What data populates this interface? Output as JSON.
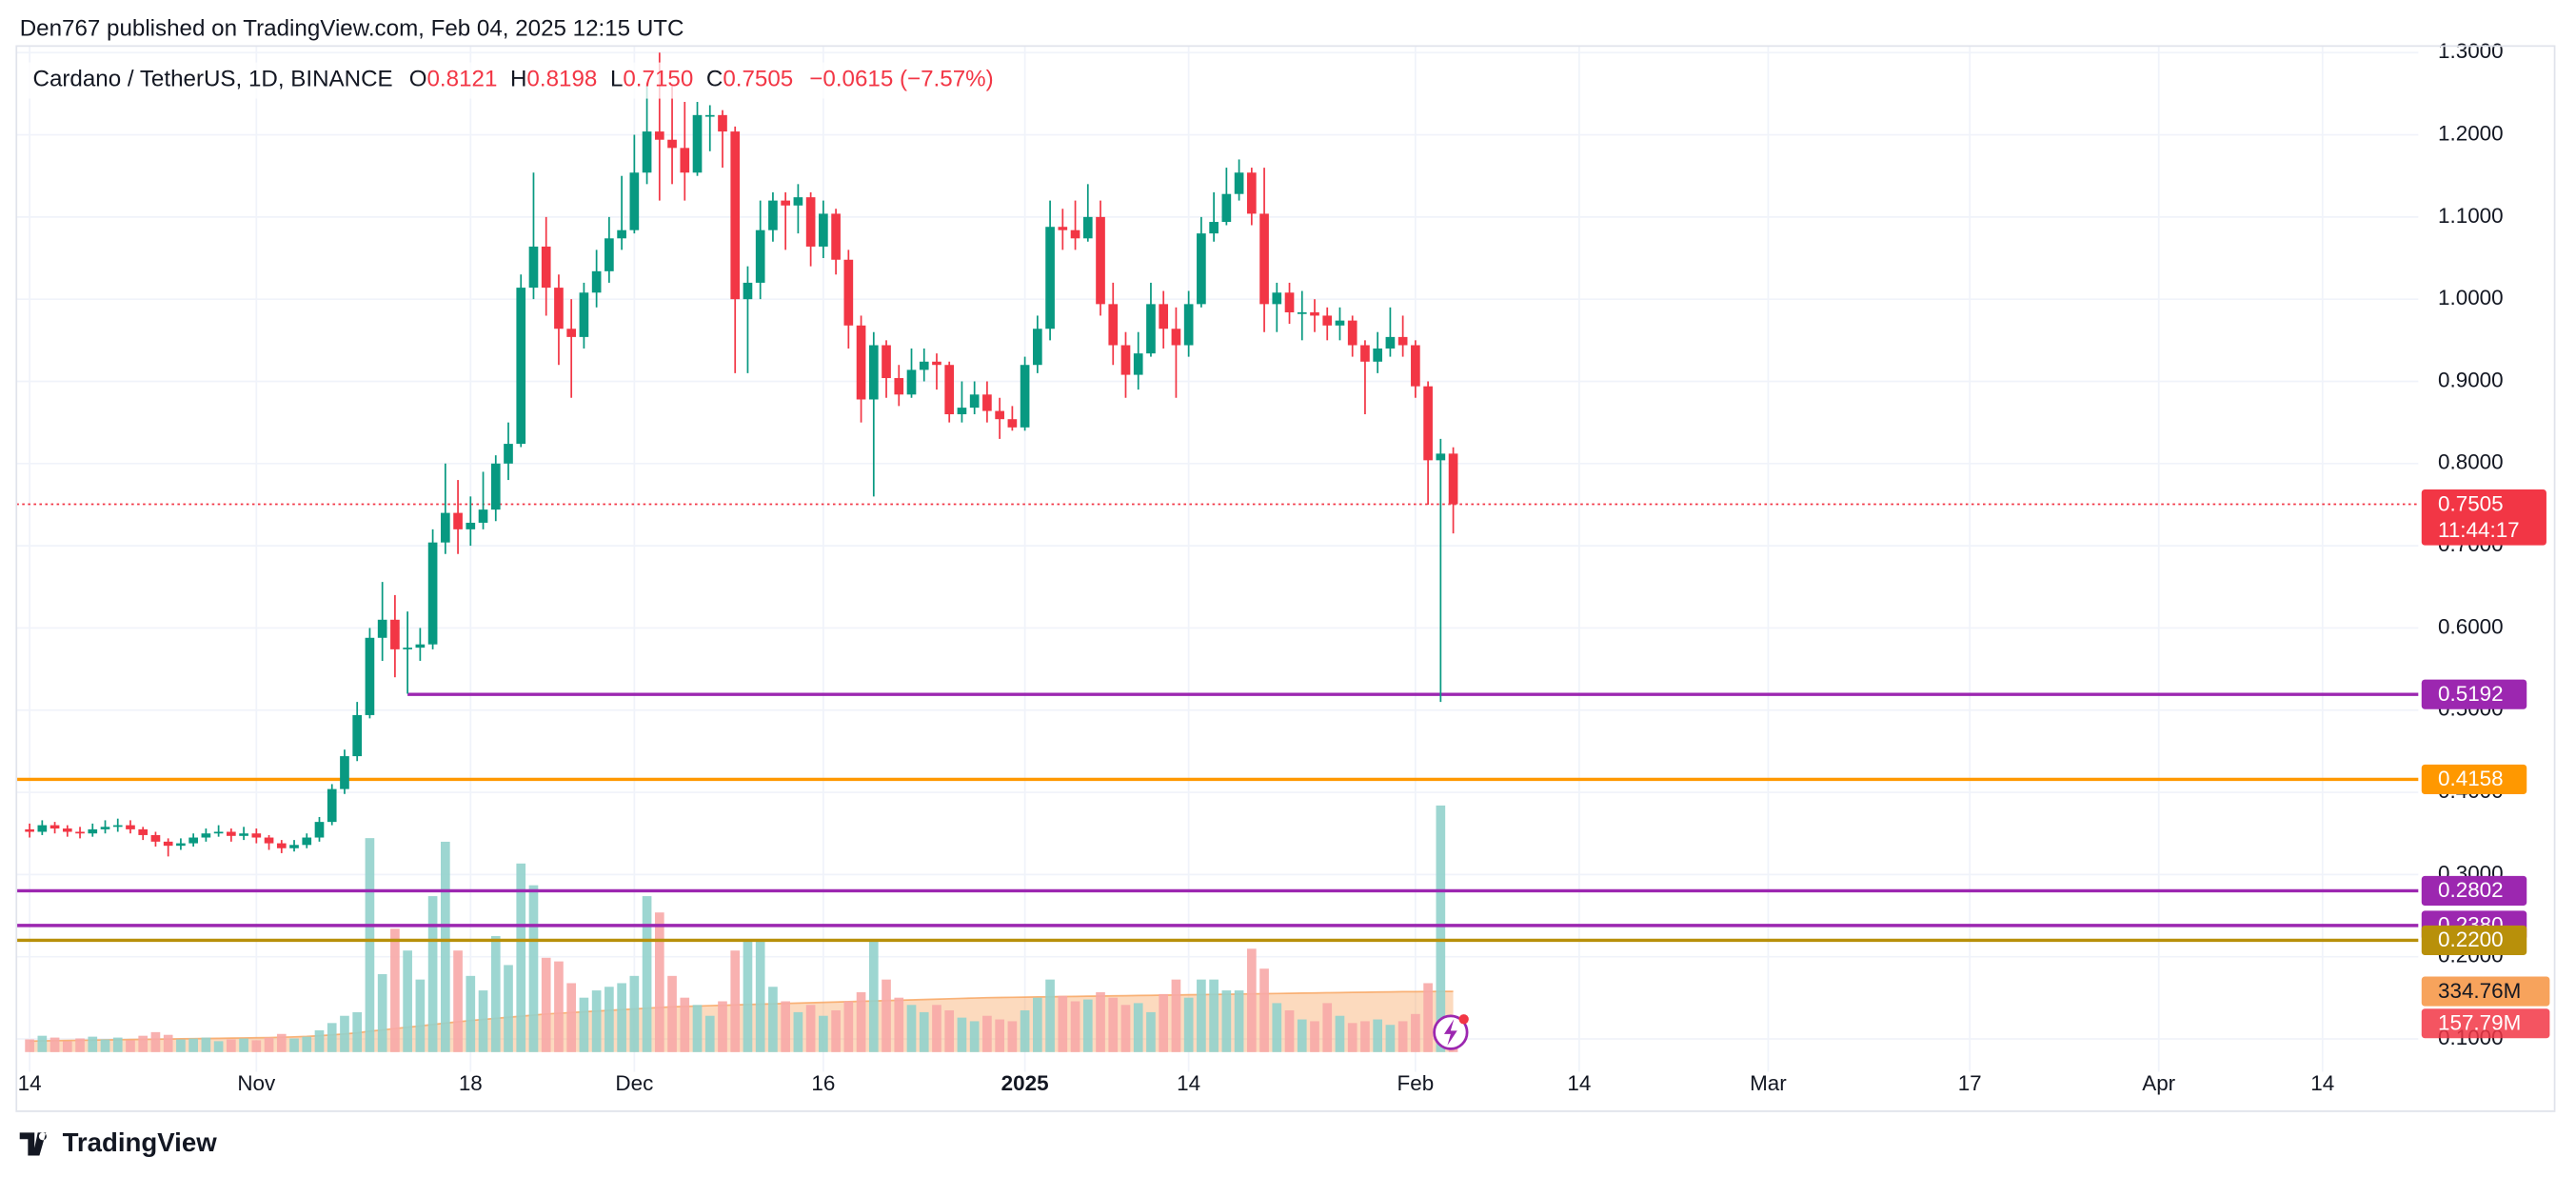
{
  "header": "Den767 published on TradingView.com, Feb 04, 2025 12:15 UTC",
  "footer": "TradingView",
  "chart_data": {
    "type": "candlestick",
    "legend": {
      "symbol": "Cardano / TetherUS, 1D, BINANCE",
      "items": [
        {
          "key": "O",
          "value": "0.8121"
        },
        {
          "key": "H",
          "value": "0.8198"
        },
        {
          "key": "L",
          "value": "0.7150"
        },
        {
          "key": "C",
          "value": "0.7505"
        }
      ],
      "change": "−0.0615 (−7.57%)"
    },
    "up_color": "#089981",
    "down_color": "#f23645",
    "volume_up_color": "#92d2cc",
    "volume_down_color": "#f7a9a7",
    "volume_ma_color": "#f7a35c",
    "open": [
      0.355,
      0.352,
      0.36,
      0.356,
      0.352,
      0.35,
      0.355,
      0.358,
      0.36,
      0.355,
      0.348,
      0.34,
      0.335,
      0.338,
      0.345,
      0.35,
      0.352,
      0.347,
      0.35,
      0.345,
      0.338,
      0.332,
      0.336,
      0.345,
      0.364,
      0.404,
      0.444,
      0.494,
      0.588,
      0.61,
      0.574,
      0.576,
      0.58,
      0.704,
      0.74,
      0.72,
      0.728,
      0.744,
      0.8,
      0.824,
      1.014,
      1.064,
      1.014,
      0.964,
      0.954,
      1.008,
      1.034,
      1.074,
      1.084,
      1.154,
      1.204,
      1.194,
      1.184,
      1.154,
      1.224,
      1.224,
      1.204,
      1.0,
      1.02,
      1.084,
      1.12,
      1.114,
      1.124,
      1.064,
      1.104,
      1.048,
      0.968,
      0.878,
      0.944,
      0.904,
      0.884,
      0.914,
      0.924,
      0.92,
      0.86,
      0.868,
      0.884,
      0.864,
      0.854,
      0.844,
      0.92,
      0.964,
      1.088,
      1.084,
      1.074,
      1.1,
      0.994,
      0.944,
      0.908,
      0.934,
      0.994,
      0.964,
      0.944,
      0.994,
      1.08,
      1.094,
      1.128,
      1.154,
      1.104,
      0.994,
      1.008,
      0.984,
      0.984,
      0.98,
      0.968,
      0.974,
      0.944,
      0.924,
      0.94,
      0.954,
      0.944,
      0.894,
      0.804,
      0.8121
    ],
    "high": [
      0.362,
      0.366,
      0.364,
      0.36,
      0.358,
      0.362,
      0.366,
      0.368,
      0.366,
      0.358,
      0.352,
      0.344,
      0.344,
      0.35,
      0.356,
      0.36,
      0.356,
      0.358,
      0.356,
      0.348,
      0.342,
      0.342,
      0.35,
      0.37,
      0.41,
      0.452,
      0.51,
      0.6,
      0.656,
      0.64,
      0.62,
      0.6,
      0.72,
      0.8,
      0.78,
      0.76,
      0.79,
      0.81,
      0.85,
      1.03,
      1.154,
      1.1,
      1.03,
      1.0,
      1.02,
      1.06,
      1.1,
      1.15,
      1.2,
      1.26,
      1.3,
      1.26,
      1.24,
      1.24,
      1.236,
      1.23,
      1.21,
      1.04,
      1.12,
      1.13,
      1.13,
      1.14,
      1.13,
      1.12,
      1.11,
      1.06,
      0.98,
      0.96,
      0.95,
      0.92,
      0.94,
      0.94,
      0.934,
      0.924,
      0.9,
      0.9,
      0.9,
      0.88,
      0.87,
      0.93,
      0.98,
      1.12,
      1.11,
      1.12,
      1.14,
      1.12,
      1.02,
      0.96,
      0.96,
      1.02,
      1.01,
      0.99,
      1.01,
      1.1,
      1.13,
      1.16,
      1.17,
      1.16,
      1.16,
      1.02,
      1.02,
      1.01,
      1.0,
      0.99,
      0.99,
      0.98,
      0.95,
      0.96,
      0.99,
      0.98,
      0.95,
      0.9,
      0.83,
      0.8198
    ],
    "low": [
      0.345,
      0.348,
      0.35,
      0.346,
      0.344,
      0.346,
      0.35,
      0.352,
      0.35,
      0.342,
      0.334,
      0.322,
      0.33,
      0.334,
      0.34,
      0.346,
      0.34,
      0.342,
      0.338,
      0.33,
      0.326,
      0.328,
      0.332,
      0.34,
      0.36,
      0.398,
      0.438,
      0.49,
      0.56,
      0.54,
      0.52,
      0.56,
      0.574,
      0.69,
      0.69,
      0.7,
      0.72,
      0.73,
      0.78,
      0.82,
      1.0,
      0.98,
      0.92,
      0.88,
      0.94,
      0.99,
      1.02,
      1.06,
      1.08,
      1.14,
      1.12,
      1.14,
      1.12,
      1.15,
      1.18,
      1.16,
      0.91,
      0.91,
      1.0,
      1.07,
      1.06,
      1.08,
      1.04,
      1.05,
      1.03,
      0.94,
      0.85,
      0.76,
      0.88,
      0.87,
      0.88,
      0.9,
      0.89,
      0.85,
      0.85,
      0.86,
      0.85,
      0.83,
      0.84,
      0.84,
      0.91,
      0.95,
      1.06,
      1.06,
      1.07,
      0.98,
      0.92,
      0.88,
      0.89,
      0.93,
      0.94,
      0.88,
      0.93,
      0.99,
      1.07,
      1.09,
      1.12,
      1.09,
      0.96,
      0.96,
      0.97,
      0.95,
      0.96,
      0.95,
      0.95,
      0.93,
      0.86,
      0.91,
      0.93,
      0.93,
      0.88,
      0.75,
      0.51,
      0.715
    ],
    "close": [
      0.352,
      0.36,
      0.356,
      0.352,
      0.35,
      0.355,
      0.358,
      0.36,
      0.355,
      0.348,
      0.34,
      0.335,
      0.338,
      0.345,
      0.35,
      0.352,
      0.347,
      0.35,
      0.345,
      0.338,
      0.332,
      0.336,
      0.345,
      0.364,
      0.404,
      0.444,
      0.494,
      0.588,
      0.61,
      0.574,
      0.576,
      0.58,
      0.704,
      0.74,
      0.72,
      0.728,
      0.744,
      0.8,
      0.824,
      1.014,
      1.064,
      1.014,
      0.964,
      0.954,
      1.008,
      1.034,
      1.074,
      1.084,
      1.154,
      1.204,
      1.194,
      1.184,
      1.154,
      1.224,
      1.224,
      1.204,
      1.0,
      1.02,
      1.084,
      1.12,
      1.114,
      1.124,
      1.064,
      1.104,
      1.048,
      0.968,
      0.878,
      0.944,
      0.904,
      0.884,
      0.914,
      0.924,
      0.92,
      0.86,
      0.868,
      0.884,
      0.864,
      0.854,
      0.844,
      0.92,
      0.964,
      1.088,
      1.084,
      1.074,
      1.1,
      0.994,
      0.944,
      0.908,
      0.934,
      0.994,
      0.964,
      0.944,
      0.994,
      1.08,
      1.094,
      1.128,
      1.154,
      1.104,
      0.994,
      1.008,
      0.984,
      0.984,
      0.98,
      0.968,
      0.974,
      0.944,
      0.924,
      0.94,
      0.954,
      0.944,
      0.894,
      0.804,
      0.8121,
      0.7505
    ],
    "volume": [
      70,
      90,
      80,
      60,
      75,
      85,
      70,
      80,
      65,
      90,
      110,
      95,
      70,
      75,
      80,
      60,
      70,
      75,
      65,
      80,
      100,
      75,
      85,
      120,
      160,
      200,
      220,
      1180,
      430,
      680,
      560,
      400,
      860,
      1160,
      560,
      420,
      340,
      640,
      480,
      1040,
      920,
      520,
      500,
      380,
      300,
      340,
      360,
      380,
      420,
      860,
      770,
      420,
      300,
      260,
      200,
      280,
      560,
      620,
      620,
      360,
      280,
      220,
      260,
      200,
      230,
      280,
      330,
      620,
      400,
      300,
      260,
      220,
      260,
      230,
      190,
      170,
      200,
      180,
      170,
      230,
      300,
      400,
      310,
      280,
      290,
      330,
      300,
      260,
      270,
      220,
      320,
      400,
      300,
      400,
      400,
      340,
      340,
      570,
      460,
      270,
      230,
      180,
      170,
      270,
      200,
      160,
      170,
      180,
      150,
      170,
      210,
      380,
      1360,
      157.79
    ],
    "volume_ma": [
      60,
      62,
      63,
      64,
      65,
      66,
      67,
      68,
      69,
      70,
      71,
      72,
      73,
      74,
      75,
      76,
      77,
      78,
      79,
      80,
      82,
      84,
      86,
      90,
      95,
      100,
      106,
      115,
      122,
      130,
      137,
      144,
      152,
      160,
      167,
      174,
      180,
      186,
      192,
      198,
      204,
      210,
      214,
      218,
      222,
      226,
      230,
      234,
      238,
      242,
      246,
      250,
      252,
      254,
      256,
      258,
      260,
      262,
      264,
      266,
      268,
      270,
      272,
      274,
      276,
      278,
      280,
      282,
      284,
      286,
      288,
      290,
      292,
      294,
      296,
      298,
      300,
      301,
      302,
      303,
      304,
      305,
      306,
      307,
      308,
      309,
      310,
      311,
      312,
      313,
      314,
      315,
      316,
      317,
      318,
      319,
      320,
      321,
      322,
      323,
      324,
      325,
      326,
      327,
      328,
      329,
      330,
      331,
      332,
      333,
      333,
      334,
      334.5,
      334.76
    ],
    "volume_ma_last": {
      "value": 334.76,
      "label": "334.76M"
    },
    "volume_last": {
      "value": 157.79,
      "label": "157.79M"
    },
    "last_price": {
      "value": 0.7505,
      "label": "0.7505",
      "countdown": "11:44:17"
    },
    "levels": [
      {
        "value": 0.5192,
        "label": "0.5192",
        "color": "#9c27b0"
      },
      {
        "value": 0.4158,
        "label": "0.4158",
        "color": "#ff9800"
      },
      {
        "value": 0.2802,
        "label": "0.2802",
        "color": "#9c27b0"
      },
      {
        "value": 0.238,
        "label": "0.2380",
        "color": "#9c27b0"
      },
      {
        "value": 0.22,
        "label": "0.2200",
        "color": "#b8900a"
      }
    ],
    "xlim": [
      -2.35,
      189.6
    ],
    "xticks": [
      {
        "value": 0,
        "label": "14"
      },
      {
        "value": 18,
        "label": "Nov"
      },
      {
        "value": 35,
        "label": "18"
      },
      {
        "value": 48,
        "label": "Dec"
      },
      {
        "value": 63,
        "label": "16"
      },
      {
        "value": 79,
        "label": "2025"
      },
      {
        "value": 92,
        "label": "14"
      },
      {
        "value": 110,
        "label": "Feb"
      },
      {
        "value": 123,
        "label": "14"
      },
      {
        "value": 138,
        "label": "Mar"
      },
      {
        "value": 154,
        "label": "17"
      },
      {
        "value": 169,
        "label": "Apr"
      },
      {
        "value": 182,
        "label": "14"
      }
    ],
    "ylim": [
      0.068,
      1.308
    ],
    "yticks": [
      {
        "value": 0.1,
        "label": "0.1000"
      },
      {
        "value": 0.2,
        "label": "0.2000"
      },
      {
        "value": 0.3,
        "label": "0.3000"
      },
      {
        "value": 0.4,
        "label": "0.4000"
      },
      {
        "value": 0.5,
        "label": "0.5000"
      },
      {
        "value": 0.6,
        "label": "0.6000"
      },
      {
        "value": 0.7,
        "label": "0.7000"
      },
      {
        "value": 0.8,
        "label": "0.8000"
      },
      {
        "value": 0.9,
        "label": "0.9000"
      },
      {
        "value": 1.0,
        "label": "1.0000"
      },
      {
        "value": 1.1,
        "label": "1.1000"
      },
      {
        "value": 1.2,
        "label": "1.2000"
      },
      {
        "value": 1.3,
        "label": "1.3000"
      }
    ],
    "grid": true
  }
}
